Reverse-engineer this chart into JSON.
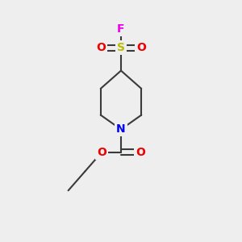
{
  "bg_color": "#eeeeee",
  "bond_color": "#3a3a3a",
  "colors": {
    "N": "#0000ee",
    "O": "#ee0000",
    "S": "#bbbb00",
    "F": "#ee00ee",
    "C": "#3a3a3a"
  },
  "line_width": 1.5,
  "font_size": 10,
  "figsize": [
    3.0,
    3.0
  ],
  "dpi": 100
}
